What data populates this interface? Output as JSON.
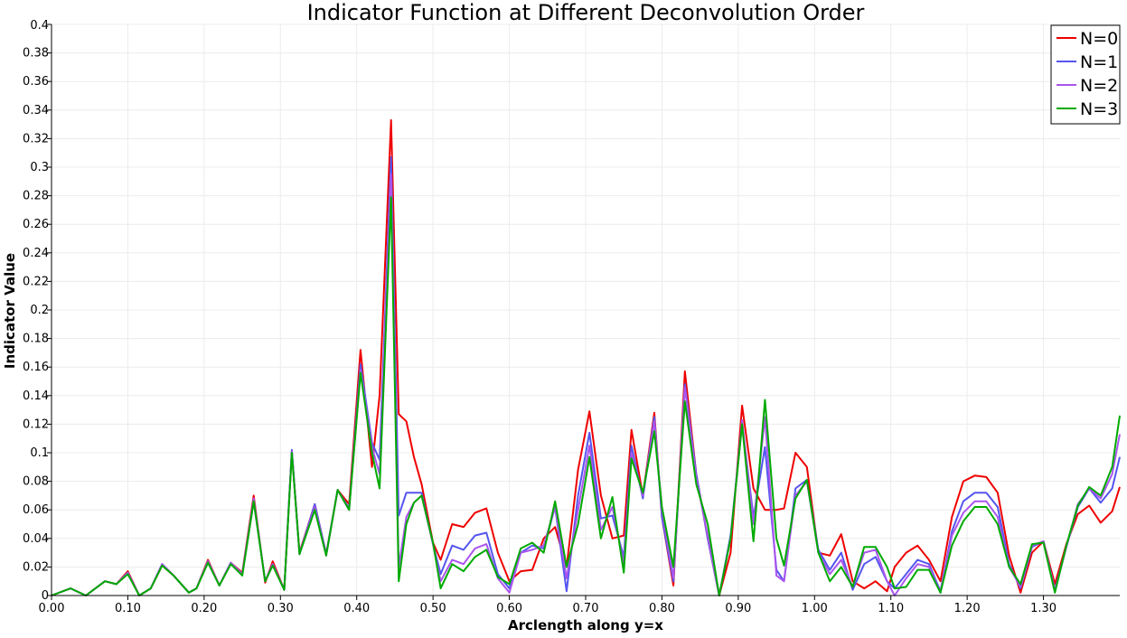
{
  "chart_data": {
    "type": "line",
    "title": "Indicator Function at Different Deconvolution Order",
    "xlabel": "Arclength along y=x",
    "ylabel": "Indicator Value",
    "xlim": [
      0,
      1.4
    ],
    "ylim": [
      0,
      0.4
    ],
    "x_ticks": [
      "0.00",
      "0.10",
      "0.20",
      "0.30",
      "0.40",
      "0.50",
      "0.60",
      "0.70",
      "0.80",
      "0.90",
      "1.00",
      "1.10",
      "1.20",
      "1.30"
    ],
    "y_ticks": [
      "0",
      "0.02",
      "0.04",
      "0.06",
      "0.08",
      "0.1",
      "0.12",
      "0.14",
      "0.16",
      "0.18",
      "0.2",
      "0.22",
      "0.24",
      "0.26",
      "0.28",
      "0.3",
      "0.32",
      "0.34",
      "0.36",
      "0.38",
      "0.4"
    ],
    "grid": true,
    "legend_position": "top-right",
    "x": [
      0.0,
      0.025,
      0.045,
      0.07,
      0.085,
      0.1,
      0.115,
      0.13,
      0.145,
      0.16,
      0.18,
      0.19,
      0.205,
      0.22,
      0.235,
      0.25,
      0.265,
      0.28,
      0.29,
      0.305,
      0.315,
      0.325,
      0.345,
      0.36,
      0.375,
      0.39,
      0.405,
      0.42,
      0.43,
      0.445,
      0.455,
      0.465,
      0.475,
      0.485,
      0.5,
      0.51,
      0.525,
      0.54,
      0.555,
      0.57,
      0.585,
      0.6,
      0.615,
      0.63,
      0.645,
      0.66,
      0.675,
      0.69,
      0.705,
      0.72,
      0.735,
      0.75,
      0.76,
      0.775,
      0.79,
      0.8,
      0.815,
      0.83,
      0.845,
      0.86,
      0.875,
      0.89,
      0.905,
      0.92,
      0.935,
      0.95,
      0.96,
      0.975,
      0.99,
      1.005,
      1.02,
      1.035,
      1.05,
      1.065,
      1.08,
      1.095,
      1.105,
      1.12,
      1.135,
      1.15,
      1.165,
      1.18,
      1.195,
      1.21,
      1.225,
      1.24,
      1.255,
      1.27,
      1.285,
      1.3,
      1.315,
      1.33,
      1.345,
      1.36,
      1.375,
      1.39,
      1.4
    ],
    "series": [
      {
        "name": "N=0",
        "color": "#ee0000",
        "values": [
          0.0,
          0.005,
          0.0,
          0.01,
          0.008,
          0.017,
          0.0,
          0.005,
          0.021,
          0.014,
          0.002,
          0.005,
          0.025,
          0.007,
          0.023,
          0.016,
          0.07,
          0.009,
          0.024,
          0.004,
          0.101,
          0.03,
          0.064,
          0.029,
          0.074,
          0.064,
          0.172,
          0.09,
          0.14,
          0.333,
          0.127,
          0.122,
          0.097,
          0.078,
          0.037,
          0.025,
          0.05,
          0.048,
          0.058,
          0.061,
          0.03,
          0.01,
          0.017,
          0.018,
          0.04,
          0.048,
          0.02,
          0.088,
          0.129,
          0.07,
          0.04,
          0.042,
          0.116,
          0.07,
          0.128,
          0.055,
          0.007,
          0.157,
          0.085,
          0.04,
          0.0,
          0.03,
          0.133,
          0.075,
          0.06,
          0.06,
          0.061,
          0.1,
          0.09,
          0.03,
          0.028,
          0.043,
          0.01,
          0.005,
          0.01,
          0.003,
          0.02,
          0.03,
          0.035,
          0.025,
          0.01,
          0.055,
          0.08,
          0.084,
          0.083,
          0.072,
          0.028,
          0.002,
          0.03,
          0.038,
          0.008,
          0.036,
          0.057,
          0.063,
          0.051,
          0.059,
          0.076
        ]
      },
      {
        "name": "N=1",
        "color": "#5555ee",
        "values": [
          0.0,
          0.005,
          0.0,
          0.01,
          0.008,
          0.016,
          0.0,
          0.005,
          0.022,
          0.014,
          0.002,
          0.005,
          0.024,
          0.007,
          0.023,
          0.015,
          0.066,
          0.01,
          0.022,
          0.004,
          0.102,
          0.029,
          0.064,
          0.029,
          0.074,
          0.061,
          0.162,
          0.107,
          0.095,
          0.307,
          0.056,
          0.072,
          0.072,
          0.072,
          0.036,
          0.015,
          0.035,
          0.032,
          0.042,
          0.044,
          0.015,
          0.005,
          0.03,
          0.035,
          0.033,
          0.062,
          0.003,
          0.07,
          0.114,
          0.054,
          0.056,
          0.027,
          0.105,
          0.068,
          0.125,
          0.055,
          0.01,
          0.148,
          0.085,
          0.04,
          0.0,
          0.042,
          0.12,
          0.055,
          0.104,
          0.018,
          0.01,
          0.075,
          0.081,
          0.032,
          0.018,
          0.03,
          0.004,
          0.022,
          0.027,
          0.01,
          0.005,
          0.015,
          0.025,
          0.022,
          0.003,
          0.045,
          0.066,
          0.072,
          0.072,
          0.062,
          0.022,
          0.005,
          0.034,
          0.038,
          0.004,
          0.034,
          0.062,
          0.075,
          0.065,
          0.075,
          0.097
        ]
      },
      {
        "name": "N=2",
        "color": "#aa55ee",
        "values": [
          0.0,
          0.005,
          0.0,
          0.01,
          0.008,
          0.016,
          0.0,
          0.005,
          0.022,
          0.014,
          0.002,
          0.005,
          0.024,
          0.007,
          0.023,
          0.015,
          0.068,
          0.01,
          0.022,
          0.004,
          0.101,
          0.029,
          0.062,
          0.028,
          0.074,
          0.06,
          0.158,
          0.104,
          0.085,
          0.295,
          0.02,
          0.055,
          0.065,
          0.07,
          0.036,
          0.01,
          0.025,
          0.022,
          0.033,
          0.036,
          0.012,
          0.002,
          0.03,
          0.032,
          0.035,
          0.062,
          0.012,
          0.06,
          0.105,
          0.046,
          0.062,
          0.022,
          0.1,
          0.07,
          0.122,
          0.06,
          0.012,
          0.146,
          0.082,
          0.042,
          0.0,
          0.04,
          0.123,
          0.05,
          0.125,
          0.014,
          0.01,
          0.07,
          0.08,
          0.03,
          0.015,
          0.025,
          0.006,
          0.03,
          0.032,
          0.01,
          0.0,
          0.012,
          0.022,
          0.02,
          0.002,
          0.042,
          0.058,
          0.066,
          0.066,
          0.055,
          0.02,
          0.006,
          0.035,
          0.038,
          0.003,
          0.034,
          0.064,
          0.075,
          0.068,
          0.085,
          0.113
        ]
      },
      {
        "name": "N=3",
        "color": "#00aa00",
        "values": [
          0.0,
          0.005,
          0.0,
          0.01,
          0.008,
          0.015,
          0.0,
          0.005,
          0.021,
          0.014,
          0.002,
          0.005,
          0.023,
          0.007,
          0.022,
          0.014,
          0.066,
          0.01,
          0.021,
          0.004,
          0.1,
          0.029,
          0.06,
          0.028,
          0.074,
          0.06,
          0.156,
          0.1,
          0.075,
          0.279,
          0.01,
          0.05,
          0.065,
          0.07,
          0.037,
          0.005,
          0.022,
          0.017,
          0.027,
          0.032,
          0.013,
          0.008,
          0.033,
          0.037,
          0.03,
          0.066,
          0.02,
          0.05,
          0.097,
          0.04,
          0.069,
          0.016,
          0.096,
          0.072,
          0.115,
          0.062,
          0.02,
          0.136,
          0.078,
          0.05,
          0.0,
          0.04,
          0.12,
          0.038,
          0.137,
          0.04,
          0.021,
          0.068,
          0.081,
          0.03,
          0.01,
          0.02,
          0.006,
          0.034,
          0.034,
          0.02,
          0.005,
          0.006,
          0.018,
          0.018,
          0.002,
          0.035,
          0.052,
          0.062,
          0.062,
          0.05,
          0.02,
          0.008,
          0.036,
          0.037,
          0.002,
          0.035,
          0.063,
          0.076,
          0.07,
          0.09,
          0.126
        ]
      }
    ]
  }
}
